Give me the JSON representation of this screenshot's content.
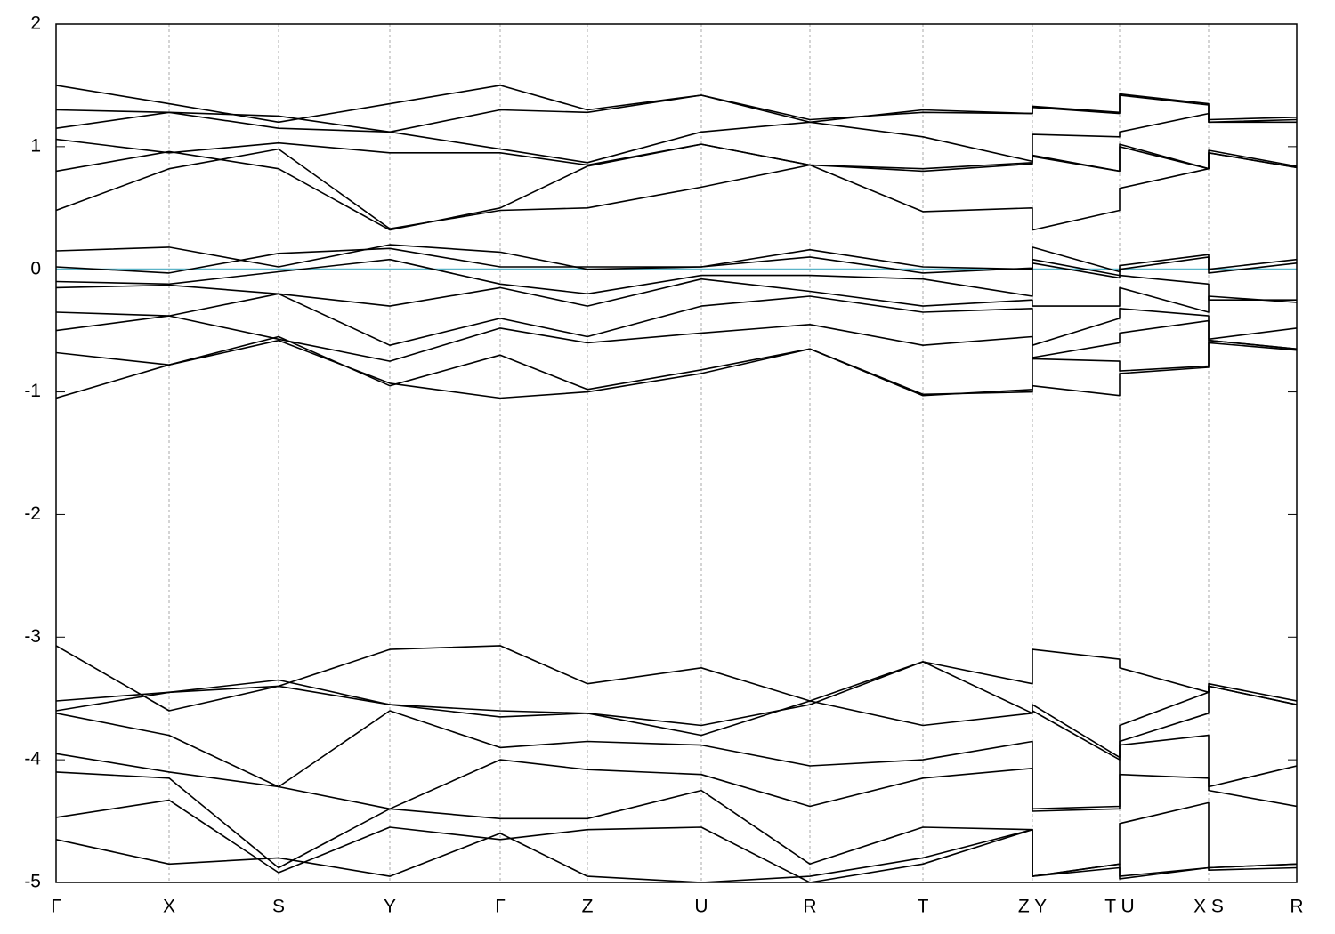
{
  "chart_data": {
    "type": "line",
    "x": [
      0,
      1.27,
      2.5,
      3.75,
      4.99,
      5.97,
      7.25,
      8.47,
      9.74,
      10.97,
      10.97,
      11.95,
      11.95,
      12.95,
      12.95,
      13.94
    ],
    "xlim": [
      0,
      13.94
    ],
    "xticks": [
      {
        "value": 0,
        "label": "Γ"
      },
      {
        "value": 1.27,
        "label": "X"
      },
      {
        "value": 2.5,
        "label": "S"
      },
      {
        "value": 3.75,
        "label": "Y"
      },
      {
        "value": 4.99,
        "label": "Γ"
      },
      {
        "value": 5.97,
        "label": "Z"
      },
      {
        "value": 7.25,
        "label": "U"
      },
      {
        "value": 8.47,
        "label": "R"
      },
      {
        "value": 9.74,
        "label": "T"
      },
      {
        "value": 10.97,
        "label": "Z Y"
      },
      {
        "value": 11.95,
        "label": "T U"
      },
      {
        "value": 12.95,
        "label": "X S"
      },
      {
        "value": 13.94,
        "label": "R"
      }
    ],
    "ylim": [
      -5,
      2
    ],
    "yticks": [
      2,
      1,
      0,
      -1,
      -2,
      -3,
      -4,
      -5
    ],
    "grid": true,
    "hline": 0,
    "hline_color": "#5bb4c8",
    "series": [
      {
        "color": "#000000",
        "values": [
          1.5,
          1.35,
          1.2,
          1.35,
          1.5,
          1.3,
          1.42,
          1.2,
          1.3,
          1.27,
          1.33,
          1.28,
          1.43,
          1.35,
          1.22,
          1.24
        ]
      },
      {
        "color": "#000000",
        "values": [
          1.3,
          1.28,
          1.25,
          1.12,
          1.3,
          1.28,
          1.42,
          1.22,
          1.28,
          1.27,
          1.32,
          1.27,
          1.42,
          1.34,
          1.2,
          1.22
        ]
      },
      {
        "color": "#000000",
        "values": [
          1.15,
          1.28,
          1.15,
          1.12,
          0.98,
          0.87,
          1.12,
          1.2,
          1.08,
          0.88,
          1.1,
          1.08,
          1.12,
          1.27,
          1.2,
          1.2
        ]
      },
      {
        "color": "#000000",
        "values": [
          1.06,
          0.95,
          1.03,
          0.95,
          0.95,
          0.85,
          1.02,
          0.85,
          0.82,
          0.87,
          0.93,
          0.8,
          1.02,
          0.82,
          0.97,
          0.84
        ]
      },
      {
        "color": "#000000",
        "values": [
          0.8,
          0.96,
          0.82,
          0.32,
          0.5,
          0.84,
          1.02,
          0.85,
          0.8,
          0.86,
          0.92,
          0.8,
          1.0,
          0.82,
          0.95,
          0.83
        ]
      },
      {
        "color": "#000000",
        "values": [
          0.48,
          0.82,
          0.98,
          0.33,
          0.48,
          0.5,
          0.67,
          0.85,
          0.47,
          0.5,
          0.32,
          0.48,
          0.66,
          0.82,
          0.95,
          0.83
        ]
      },
      {
        "color": "#000000",
        "values": [
          0.15,
          0.18,
          0.02,
          0.2,
          0.14,
          0.0,
          0.02,
          0.16,
          0.02,
          0.0,
          0.18,
          -0.02,
          0.03,
          0.12,
          0.0,
          0.08
        ]
      },
      {
        "color": "#000000",
        "values": [
          0.02,
          -0.03,
          0.13,
          0.17,
          0.02,
          0.02,
          0.02,
          0.1,
          -0.03,
          0.01,
          0.08,
          -0.05,
          0.0,
          0.1,
          -0.03,
          0.05
        ]
      },
      {
        "color": "#000000",
        "values": [
          -0.1,
          -0.12,
          -0.02,
          0.08,
          -0.12,
          -0.2,
          -0.05,
          -0.05,
          -0.08,
          -0.22,
          0.05,
          -0.07,
          -0.05,
          -0.12,
          -0.25,
          -0.25
        ]
      },
      {
        "color": "#000000",
        "values": [
          -0.15,
          -0.13,
          -0.2,
          -0.3,
          -0.15,
          -0.3,
          -0.08,
          -0.18,
          -0.3,
          -0.25,
          -0.3,
          -0.3,
          -0.15,
          -0.35,
          -0.22,
          -0.27
        ]
      },
      {
        "color": "#000000",
        "values": [
          -0.35,
          -0.38,
          -0.2,
          -0.62,
          -0.4,
          -0.55,
          -0.3,
          -0.22,
          -0.35,
          -0.32,
          -0.62,
          -0.4,
          -0.32,
          -0.38,
          -0.57,
          -0.48
        ]
      },
      {
        "color": "#000000",
        "values": [
          -0.5,
          -0.38,
          -0.57,
          -0.75,
          -0.48,
          -0.6,
          -0.52,
          -0.45,
          -0.62,
          -0.55,
          -0.72,
          -0.6,
          -0.52,
          -0.42,
          -0.58,
          -0.65
        ]
      },
      {
        "color": "#000000",
        "values": [
          -0.68,
          -0.78,
          -0.55,
          -0.95,
          -0.7,
          -0.98,
          -0.82,
          -0.65,
          -1.03,
          -0.98,
          -0.95,
          -1.03,
          -0.85,
          -0.8,
          -0.58,
          -0.65
        ]
      },
      {
        "color": "#000000",
        "values": [
          -1.05,
          -0.78,
          -0.58,
          -0.93,
          -1.05,
          -1.0,
          -0.85,
          -0.65,
          -1.02,
          -1.0,
          -0.73,
          -0.75,
          -0.83,
          -0.79,
          -0.6,
          -0.66
        ]
      },
      {
        "color": "#000000",
        "values": [
          -3.07,
          -3.6,
          -3.4,
          -3.1,
          -3.07,
          -3.38,
          -3.25,
          -3.52,
          -3.2,
          -3.38,
          -3.1,
          -3.18,
          -3.25,
          -3.45,
          -3.38,
          -3.52
        ]
      },
      {
        "color": "#000000",
        "values": [
          -3.52,
          -3.45,
          -3.4,
          -3.55,
          -3.6,
          -3.62,
          -3.8,
          -3.52,
          -3.72,
          -3.62,
          -3.55,
          -3.98,
          -3.85,
          -3.62,
          -3.4,
          -3.55
        ]
      },
      {
        "color": "#000000",
        "values": [
          -3.6,
          -3.45,
          -3.35,
          -3.55,
          -3.65,
          -3.62,
          -3.72,
          -3.55,
          -3.2,
          -3.62,
          -3.6,
          -4.0,
          -3.72,
          -3.45,
          -3.4,
          -3.55
        ]
      },
      {
        "color": "#000000",
        "values": [
          -3.62,
          -3.8,
          -4.22,
          -3.6,
          -3.9,
          -3.85,
          -3.88,
          -4.05,
          -4.0,
          -3.85,
          -4.4,
          -4.38,
          -3.88,
          -3.8,
          -4.22,
          -4.05
        ]
      },
      {
        "color": "#000000",
        "values": [
          -3.95,
          -4.1,
          -4.22,
          -4.4,
          -4.0,
          -4.08,
          -4.12,
          -4.38,
          -4.15,
          -4.07,
          -4.42,
          -4.4,
          -4.12,
          -4.15,
          -4.25,
          -4.38
        ]
      },
      {
        "color": "#000000",
        "values": [
          -4.1,
          -4.15,
          -4.88,
          -4.4,
          -4.48,
          -4.48,
          -4.25,
          -4.85,
          -4.55,
          -4.57,
          -4.95,
          -4.85,
          -4.52,
          -4.35,
          -4.88,
          -4.85
        ]
      },
      {
        "color": "#000000",
        "values": [
          -4.47,
          -4.33,
          -4.92,
          -4.55,
          -4.65,
          -4.57,
          -4.55,
          -5.0,
          -4.85,
          -4.57,
          -4.95,
          -4.85,
          -4.95,
          -4.88,
          -4.88,
          -4.85
        ]
      },
      {
        "color": "#000000",
        "values": [
          -4.65,
          -4.85,
          -4.8,
          -4.95,
          -4.6,
          -4.95,
          -5.0,
          -4.95,
          -4.8,
          -4.57,
          -4.95,
          -4.88,
          -4.97,
          -4.88,
          -4.9,
          -4.88
        ]
      }
    ]
  }
}
